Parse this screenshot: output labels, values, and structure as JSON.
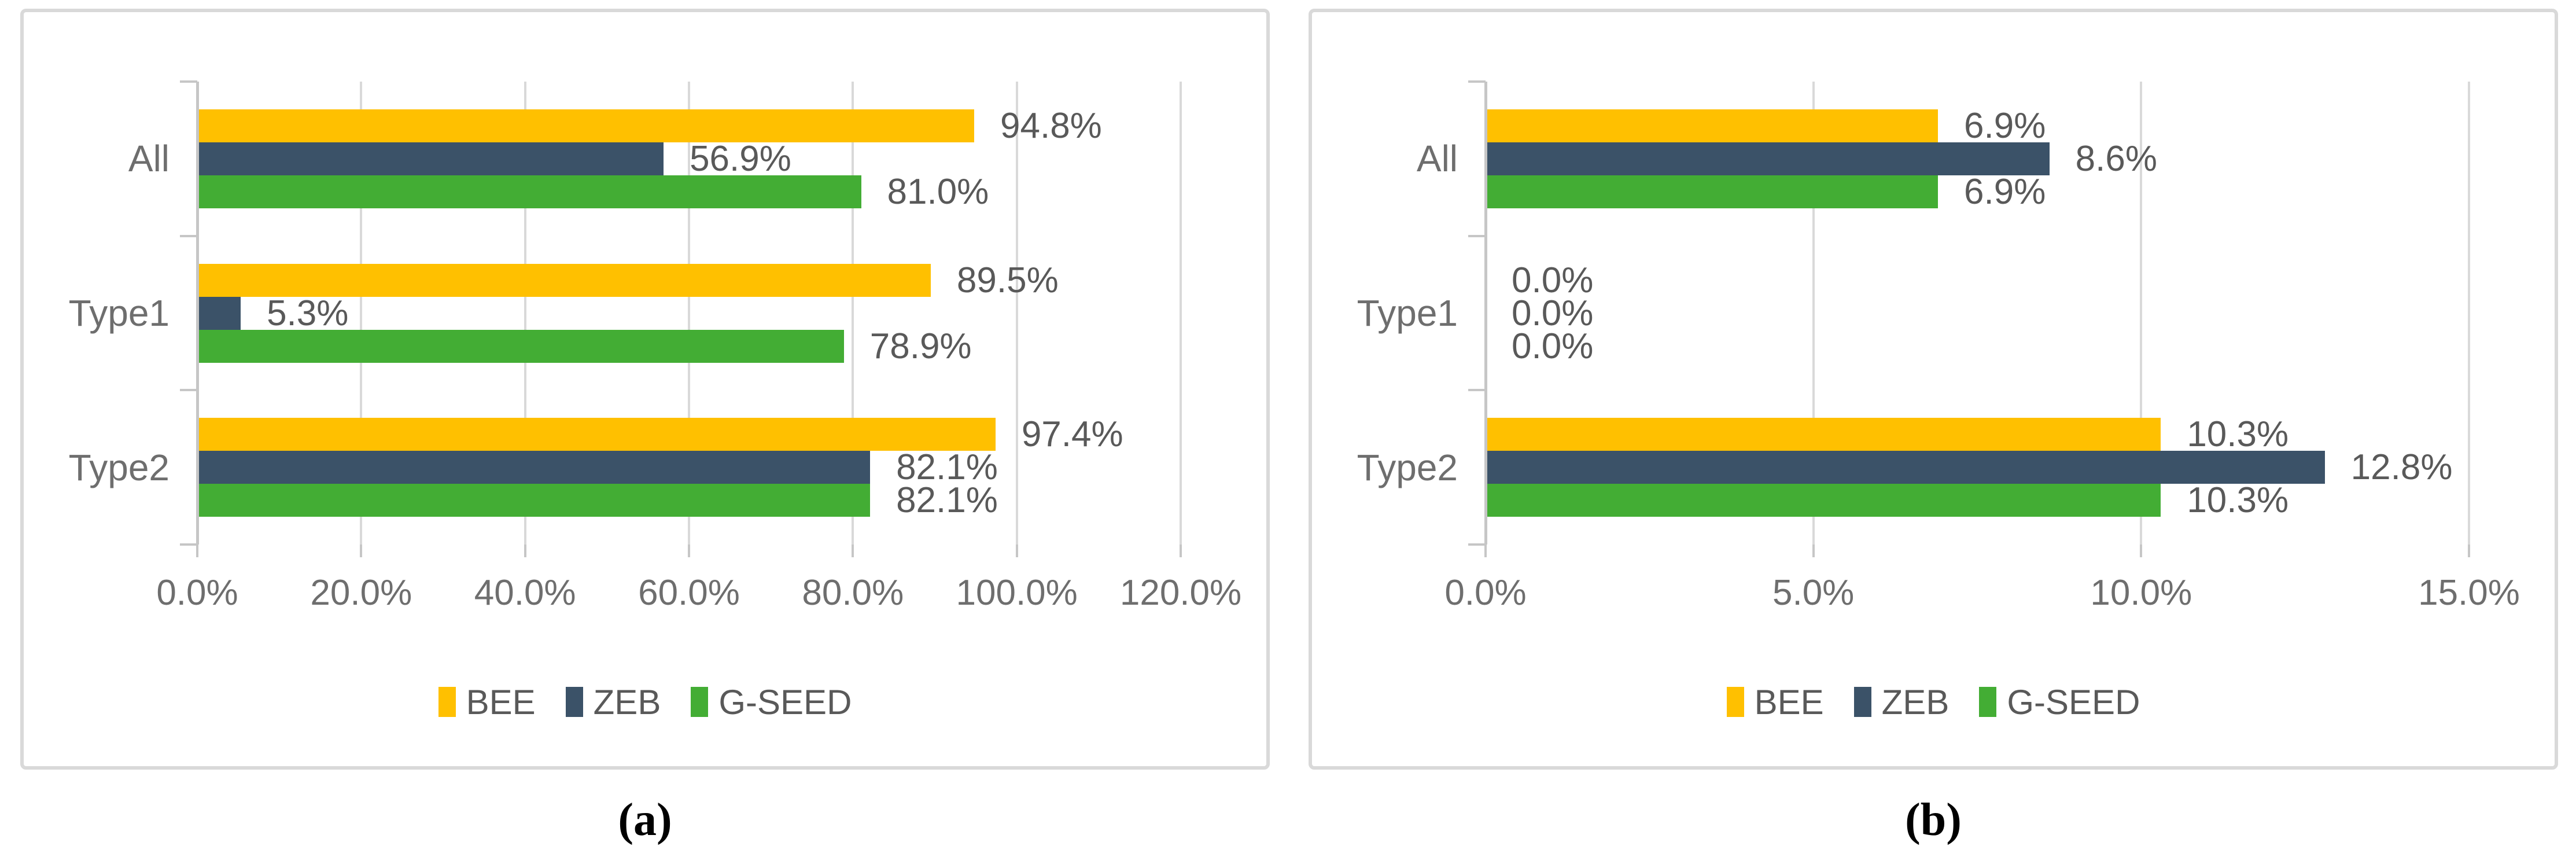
{
  "styles": {
    "background": "#ffffff",
    "panel_border": "#d9d9d9",
    "grid_color": "#d9d9d9",
    "axis_color": "#c6c6c6",
    "tick_text_color": "#6e6e6e",
    "data_label_color": "#595959",
    "legend_text_color": "#595959",
    "caption_color": "#000000"
  },
  "chart_data": [
    {
      "id": "a",
      "type": "bar",
      "orientation": "horizontal",
      "title": "",
      "caption": "(a)",
      "categories": [
        "All",
        "Type1",
        "Type2"
      ],
      "series": [
        {
          "name": "BEE",
          "color": "#ffc000",
          "values": [
            94.8,
            89.5,
            97.4
          ],
          "labels": [
            "94.8%",
            "89.5%",
            "97.4%"
          ]
        },
        {
          "name": "ZEB",
          "color": "#3b5268",
          "values": [
            56.9,
            5.3,
            82.1
          ],
          "labels": [
            "56.9%",
            "5.3%",
            "82.1%"
          ]
        },
        {
          "name": "G-SEED",
          "color": "#43ad34",
          "values": [
            81.0,
            78.9,
            82.1
          ],
          "labels": [
            "81.0%",
            "78.9%",
            "82.1%"
          ]
        }
      ],
      "x_axis": {
        "min": 0,
        "max": 120,
        "tick_step": 20,
        "tick_labels": [
          "0.0%",
          "20.0%",
          "40.0%",
          "60.0%",
          "80.0%",
          "100.0%",
          "120.0%"
        ]
      },
      "grid": true,
      "legend_position": "bottom",
      "legend_entries": [
        "BEE",
        "ZEB",
        "G-SEED"
      ]
    },
    {
      "id": "b",
      "type": "bar",
      "orientation": "horizontal",
      "title": "",
      "caption": "(b)",
      "categories": [
        "All",
        "Type1",
        "Type2"
      ],
      "series": [
        {
          "name": "BEE",
          "color": "#ffc000",
          "values": [
            6.9,
            0.0,
            10.3
          ],
          "labels": [
            "6.9%",
            "0.0%",
            "10.3%"
          ]
        },
        {
          "name": "ZEB",
          "color": "#3b5268",
          "values": [
            8.6,
            0.0,
            12.8
          ],
          "labels": [
            "8.6%",
            "0.0%",
            "12.8%"
          ]
        },
        {
          "name": "G-SEED",
          "color": "#43ad34",
          "values": [
            6.9,
            0.0,
            10.3
          ],
          "labels": [
            "6.9%",
            "0.0%",
            "10.3%"
          ]
        }
      ],
      "x_axis": {
        "min": 0,
        "max": 15,
        "tick_step": 5,
        "tick_labels": [
          "0.0%",
          "5.0%",
          "10.0%",
          "15.0%"
        ]
      },
      "grid": true,
      "legend_position": "bottom",
      "legend_entries": [
        "BEE",
        "ZEB",
        "G-SEED"
      ]
    }
  ]
}
